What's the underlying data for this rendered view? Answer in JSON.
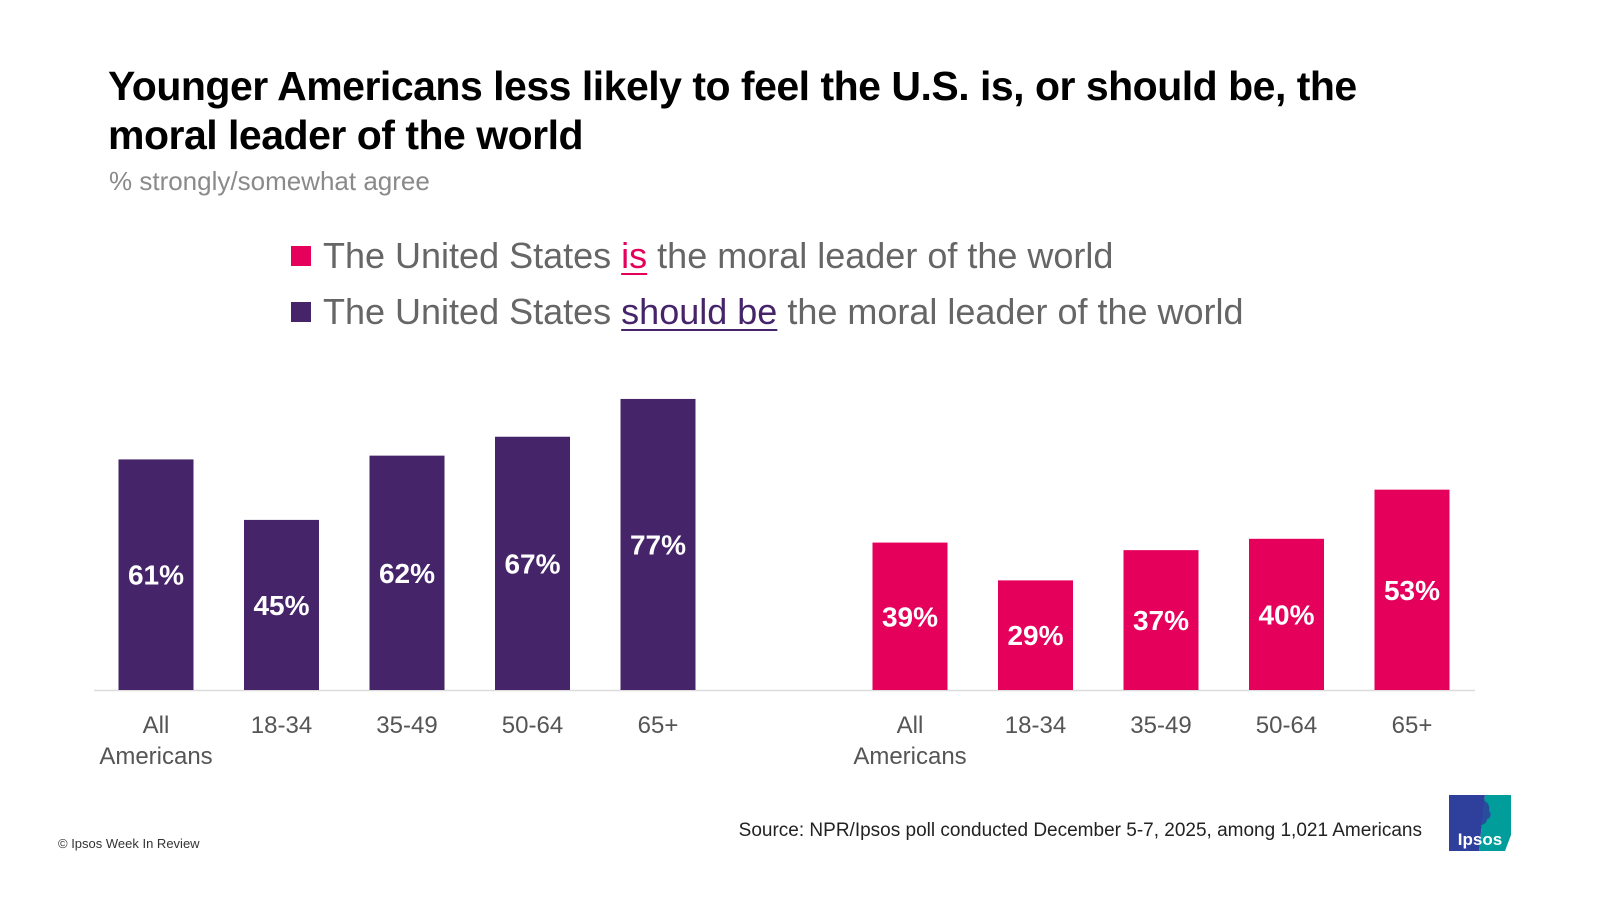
{
  "header": {
    "title": "Younger Americans less likely to feel the U.S. is, or should be, the moral leader of the world",
    "subtitle": "% strongly/somewhat agree"
  },
  "legend": [
    {
      "prefix": "The United States ",
      "highlight": "is",
      "suffix": " the moral leader of the world",
      "color": "#e4005b"
    },
    {
      "prefix": "The United States ",
      "highlight": "should be",
      "suffix": " the moral leader of the world",
      "color": "#45246a"
    }
  ],
  "chart_data": [
    {
      "type": "bar",
      "title": "The United States should be the moral leader of the world",
      "categories": [
        "All Americans",
        "18-34",
        "35-49",
        "50-64",
        "65+"
      ],
      "values": [
        61,
        45,
        62,
        67,
        77
      ],
      "labels": [
        "61%",
        "45%",
        "62%",
        "67%",
        "77%"
      ],
      "color": "#45246a",
      "ylim": [
        0,
        100
      ],
      "grid": false,
      "xlabel": "",
      "ylabel": ""
    },
    {
      "type": "bar",
      "title": "The United States is the moral leader of the world",
      "categories": [
        "All Americans",
        "18-34",
        "35-49",
        "50-64",
        "65+"
      ],
      "values": [
        39,
        29,
        37,
        40,
        53
      ],
      "labels": [
        "39%",
        "29%",
        "37%",
        "40%",
        "53%"
      ],
      "color": "#e4005b",
      "ylim": [
        0,
        100
      ],
      "grid": false,
      "xlabel": "",
      "ylabel": ""
    }
  ],
  "footer": {
    "copyright": "© Ipsos Week In Review",
    "source": "Source: NPR/Ipsos poll conducted December 5-7, 2025, among 1,021 Americans",
    "logo_text": "Ipsos",
    "logo_colors": {
      "left": "#2e3f9c",
      "right": "#009d9a"
    }
  }
}
